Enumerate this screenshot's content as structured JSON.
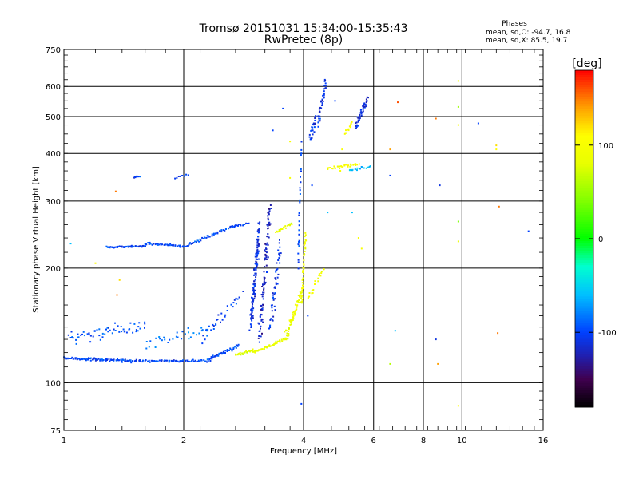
{
  "chart_data": {
    "type": "scatter",
    "title": "Tromsø 20151031 15:34:00-15:35:43",
    "subtitle": "RwPretec (8p)",
    "xlabel": "Frequency [MHz]",
    "ylabel": "Stationary phase Virtual Height [km]",
    "x_scale": "log",
    "y_scale": "log",
    "xlim": [
      1,
      16
    ],
    "ylim": [
      75,
      750
    ],
    "x_ticks": [
      1,
      2,
      4,
      6,
      8,
      10,
      16
    ],
    "y_ticks": [
      75,
      100,
      200,
      300,
      400,
      500,
      600,
      750
    ],
    "x_ticks_shown": [
      "1",
      "2",
      "4",
      "6",
      "8",
      "10",
      "16"
    ],
    "y_ticks_shown": [
      "75",
      "100",
      "200",
      "300",
      "400",
      "500",
      "600",
      "750"
    ],
    "grid": true,
    "stats": {
      "heading": "Phases",
      "line_o": "mean, sd,O: -94.7, 16.8",
      "line_x": "mean, sd,X:  85.5, 19.7"
    },
    "colorbar": {
      "label": "[deg]",
      "range": [
        -180,
        180
      ],
      "ticks": [
        -100,
        0,
        100
      ],
      "tick_labels": [
        "-100",
        "0",
        "100"
      ]
    },
    "color_scale": [
      [
        -180,
        "#000000"
      ],
      [
        -150,
        "#400050"
      ],
      [
        -125,
        "#2020b0"
      ],
      [
        -100,
        "#0040ff"
      ],
      [
        -60,
        "#00c0ff"
      ],
      [
        -30,
        "#00ffd0"
      ],
      [
        0,
        "#00ff00"
      ],
      [
        40,
        "#80ff00"
      ],
      [
        80,
        "#e8ff00"
      ],
      [
        110,
        "#ffff00"
      ],
      [
        140,
        "#ffa000"
      ],
      [
        180,
        "#ff0000"
      ]
    ],
    "series": [
      {
        "segments": [
          {
            "x": [
              1.0,
              1.5
            ],
            "y": [
              116,
              114
            ],
            "phase": -100,
            "n": 90,
            "jx": 0.01,
            "jy": 0.012
          },
          {
            "x": [
              1.5,
              2.3
            ],
            "y": [
              114,
              114
            ],
            "phase": -100,
            "n": 70,
            "jx": 0.01,
            "jy": 0.01
          },
          {
            "x": [
              2.3,
              2.75
            ],
            "y": [
              115,
              125
            ],
            "phase": -100,
            "n": 45,
            "jx": 0.01,
            "jy": 0.015
          },
          {
            "x": [
              1.03,
              1.6
            ],
            "y": [
              130,
              140
            ],
            "phase": -95,
            "n": 60,
            "jx": 0.02,
            "jy": 0.06
          },
          {
            "x": [
              1.6,
              2.4
            ],
            "y": [
              125,
              140
            ],
            "phase": -85,
            "n": 35,
            "jx": 0.03,
            "jy": 0.05
          },
          {
            "x": [
              2.2,
              2.8
            ],
            "y": [
              130,
              170
            ],
            "phase": -100,
            "n": 30,
            "jx": 0.015,
            "jy": 0.06
          },
          {
            "x": [
              1.28,
              1.6
            ],
            "y": [
              227,
              228
            ],
            "phase": -100,
            "n": 50,
            "jx": 0.008,
            "jy": 0.008
          },
          {
            "x": [
              1.6,
              2.05
            ],
            "y": [
              232,
              228
            ],
            "phase": -100,
            "n": 45,
            "jx": 0.01,
            "jy": 0.01
          },
          {
            "x": [
              2.05,
              2.65
            ],
            "y": [
              230,
              258
            ],
            "phase": -100,
            "n": 45,
            "jx": 0.008,
            "jy": 0.01
          },
          {
            "x": [
              2.65,
              2.9
            ],
            "y": [
              258,
              262
            ],
            "phase": -100,
            "n": 15,
            "jx": 0.01,
            "jy": 0.01
          },
          {
            "x": [
              1.5,
              1.55
            ],
            "y": [
              346,
              350
            ],
            "phase": -100,
            "n": 8,
            "jx": 0.005,
            "jy": 0.01
          },
          {
            "x": [
              1.9,
              2.05
            ],
            "y": [
              345,
              352
            ],
            "phase": -100,
            "n": 8,
            "jx": 0.005,
            "jy": 0.01
          },
          {
            "x": [
              2.95,
              3.1
            ],
            "y": [
              140,
              260
            ],
            "phase": -110,
            "n": 130,
            "jx": 0.01,
            "jy": 0.09
          },
          {
            "x": [
              3.1,
              3.3
            ],
            "y": [
              130,
              300
            ],
            "phase": -120,
            "n": 100,
            "jx": 0.015,
            "jy": 0.08
          },
          {
            "x": [
              3.3,
              3.5
            ],
            "y": [
              140,
              230
            ],
            "phase": -105,
            "n": 50,
            "jx": 0.015,
            "jy": 0.07
          },
          {
            "x": [
              2.7,
              3.0
            ],
            "y": [
              118,
              122
            ],
            "phase": 80,
            "n": 30,
            "jx": 0.01,
            "jy": 0.01
          },
          {
            "x": [
              3.0,
              3.6
            ],
            "y": [
              120,
              130
            ],
            "phase": 85,
            "n": 50,
            "jx": 0.01,
            "jy": 0.012
          },
          {
            "x": [
              3.6,
              3.95
            ],
            "y": [
              130,
              170
            ],
            "phase": 90,
            "n": 60,
            "jx": 0.01,
            "jy": 0.05
          },
          {
            "x": [
              3.95,
              4.05
            ],
            "y": [
              160,
              250
            ],
            "phase": 95,
            "n": 40,
            "jx": 0.004,
            "jy": 0.08
          },
          {
            "x": [
              3.4,
              3.75
            ],
            "y": [
              248,
              262
            ],
            "phase": 85,
            "n": 18,
            "jx": 0.01,
            "jy": 0.01
          },
          {
            "x": [
              4.1,
              4.5
            ],
            "y": [
              165,
              200
            ],
            "phase": 95,
            "n": 20,
            "jx": 0.01,
            "jy": 0.03
          },
          {
            "x": [
              3.88,
              3.95
            ],
            "y": [
              200,
              420
            ],
            "phase": -100,
            "n": 30,
            "jx": 0.005,
            "jy": 0.06
          },
          {
            "x": [
              4.15,
              4.3
            ],
            "y": [
              430,
              500
            ],
            "phase": -105,
            "n": 25,
            "jx": 0.01,
            "jy": 0.05
          },
          {
            "x": [
              4.35,
              4.55
            ],
            "y": [
              480,
              620
            ],
            "phase": -110,
            "n": 45,
            "jx": 0.01,
            "jy": 0.04
          },
          {
            "x": [
              4.6,
              5.5
            ],
            "y": [
              365,
              375
            ],
            "phase": 100,
            "n": 30,
            "jx": 0.015,
            "jy": 0.015
          },
          {
            "x": [
              5.1,
              5.3
            ],
            "y": [
              450,
              480
            ],
            "phase": 100,
            "n": 15,
            "jx": 0.01,
            "jy": 0.02
          },
          {
            "x": [
              5.4,
              5.8
            ],
            "y": [
              470,
              560
            ],
            "phase": -110,
            "n": 45,
            "jx": 0.01,
            "jy": 0.04
          },
          {
            "x": [
              5.2,
              5.9
            ],
            "y": [
              360,
              370
            ],
            "phase": -60,
            "n": 15,
            "jx": 0.01,
            "jy": 0.01
          }
        ],
        "points": [
          {
            "x": 1.35,
            "y": 318,
            "phase": 150
          },
          {
            "x": 1.36,
            "y": 170,
            "phase": 150
          },
          {
            "x": 1.38,
            "y": 186,
            "phase": 120
          },
          {
            "x": 1.04,
            "y": 232,
            "phase": -60
          },
          {
            "x": 1.2,
            "y": 206,
            "phase": 110
          },
          {
            "x": 3.55,
            "y": 525,
            "phase": -100
          },
          {
            "x": 3.35,
            "y": 460,
            "phase": -100
          },
          {
            "x": 3.7,
            "y": 430,
            "phase": 100
          },
          {
            "x": 3.7,
            "y": 345,
            "phase": 100
          },
          {
            "x": 3.95,
            "y": 88,
            "phase": -100
          },
          {
            "x": 4.8,
            "y": 550,
            "phase": -100
          },
          {
            "x": 4.6,
            "y": 280,
            "phase": -60
          },
          {
            "x": 5.3,
            "y": 280,
            "phase": -60
          },
          {
            "x": 5.5,
            "y": 240,
            "phase": 100
          },
          {
            "x": 5.6,
            "y": 225,
            "phase": 100
          },
          {
            "x": 5.0,
            "y": 410,
            "phase": 100
          },
          {
            "x": 6.6,
            "y": 410,
            "phase": 140
          },
          {
            "x": 6.9,
            "y": 545,
            "phase": 160
          },
          {
            "x": 6.6,
            "y": 350,
            "phase": -100
          },
          {
            "x": 6.8,
            "y": 137,
            "phase": -60
          },
          {
            "x": 6.6,
            "y": 112,
            "phase": 60
          },
          {
            "x": 8.6,
            "y": 494,
            "phase": 150
          },
          {
            "x": 8.8,
            "y": 330,
            "phase": -110
          },
          {
            "x": 8.6,
            "y": 130,
            "phase": -110
          },
          {
            "x": 8.7,
            "y": 112,
            "phase": 140
          },
          {
            "x": 9.8,
            "y": 620,
            "phase": 90
          },
          {
            "x": 9.8,
            "y": 530,
            "phase": 50
          },
          {
            "x": 9.8,
            "y": 475,
            "phase": 100
          },
          {
            "x": 9.8,
            "y": 265,
            "phase": 40
          },
          {
            "x": 9.8,
            "y": 235,
            "phase": 80
          },
          {
            "x": 9.8,
            "y": 87,
            "phase": 110
          },
          {
            "x": 11.0,
            "y": 480,
            "phase": -100
          },
          {
            "x": 12.2,
            "y": 420,
            "phase": 120
          },
          {
            "x": 12.2,
            "y": 410,
            "phase": 110
          },
          {
            "x": 12.4,
            "y": 290,
            "phase": 150
          },
          {
            "x": 12.3,
            "y": 135,
            "phase": 150
          },
          {
            "x": 14.7,
            "y": 250,
            "phase": -100
          },
          {
            "x": 4.2,
            "y": 330,
            "phase": -100
          },
          {
            "x": 4.1,
            "y": 150,
            "phase": -100
          },
          {
            "x": 4.95,
            "y": 360,
            "phase": 100
          }
        ]
      }
    ]
  }
}
